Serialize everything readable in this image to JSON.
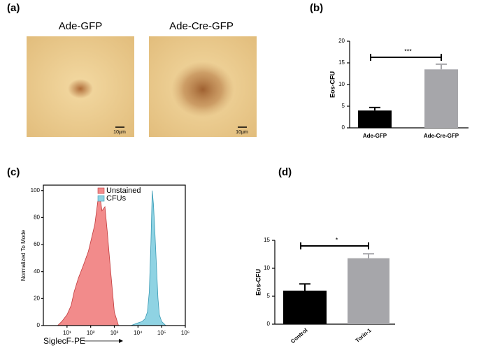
{
  "images": {
    "label": "(a)",
    "titles": [
      "Ade-GFP",
      "Ade-Cre-GFP"
    ],
    "scale_bars": [
      "10µm",
      "10µm"
    ]
  },
  "chart_data": [
    {
      "type": "bar",
      "label": "(b)",
      "ylabel": "Eos-CFU",
      "categories": [
        "Ade-GFP",
        "Ade-Cre-GFP"
      ],
      "values": [
        4,
        13.5
      ],
      "errors": [
        0.7,
        1.2
      ],
      "colors": [
        "#000000",
        "#a6a6aa"
      ],
      "ylim": [
        0,
        20
      ],
      "yticks": [
        0,
        5,
        10,
        15,
        20
      ],
      "annotation": "***"
    },
    {
      "type": "area",
      "label": "(c)",
      "ylabel": "Normalized To Mode",
      "xlabel": "SiglecF-PE",
      "xscale": "log",
      "xlim": [
        1,
        1000000
      ],
      "ylim": [
        0,
        104
      ],
      "xticks": [
        {
          "value": 10,
          "label": "10¹"
        },
        {
          "value": 100,
          "label": "10²"
        },
        {
          "value": 1000,
          "label": "10³"
        },
        {
          "value": 10000,
          "label": "10⁴"
        },
        {
          "value": 100000,
          "label": "10⁵"
        },
        {
          "value": 1000000,
          "label": "10⁶"
        }
      ],
      "yticks": [
        0,
        20,
        40,
        60,
        80,
        100
      ],
      "legend": "top",
      "series": [
        {
          "name": "Unstained",
          "color": "#f28b8b",
          "edge": "#c0393b",
          "x": [
            4,
            6,
            10,
            15,
            20,
            30,
            50,
            80,
            100,
            150,
            200,
            250,
            300,
            400,
            500,
            700,
            1000,
            1500
          ],
          "values": [
            0,
            3,
            8,
            15,
            25,
            35,
            45,
            55,
            62,
            75,
            92,
            95,
            85,
            88,
            70,
            40,
            10,
            0
          ]
        },
        {
          "name": "CFUs",
          "color": "#8fd3e3",
          "edge": "#3a9bb5",
          "x": [
            5000,
            10000,
            15000,
            20000,
            25000,
            30000,
            35000,
            40000,
            45000,
            50000,
            60000,
            70000,
            80000,
            100000,
            150000
          ],
          "values": [
            0,
            2,
            3,
            5,
            10,
            25,
            60,
            100,
            90,
            75,
            45,
            20,
            8,
            3,
            0
          ]
        }
      ]
    },
    {
      "type": "bar",
      "label": "(d)",
      "ylabel": "Eos-CFU",
      "categories": [
        "Control",
        "Torin-1"
      ],
      "values": [
        6,
        11.8
      ],
      "errors": [
        1.2,
        0.8
      ],
      "colors": [
        "#000000",
        "#a6a6aa"
      ],
      "ylim": [
        0,
        15
      ],
      "yticks": [
        0,
        5,
        10,
        15
      ],
      "annotation": "*"
    }
  ]
}
